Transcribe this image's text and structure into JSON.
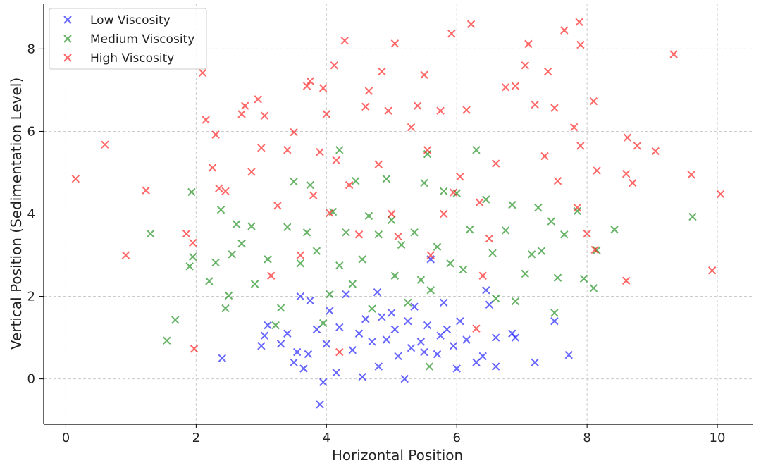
{
  "chart_data": {
    "type": "scatter",
    "title": "",
    "xlabel": "Horizontal Position",
    "ylabel": "Vertical Position (Sedimentation Level)",
    "xlim": [
      -0.34,
      10.54
    ],
    "ylim": [
      -1.1,
      9.1
    ],
    "xticks": [
      0,
      2,
      4,
      6,
      8,
      10
    ],
    "yticks": [
      0,
      2,
      4,
      6,
      8
    ],
    "grid": true,
    "legend_position": "top-left",
    "marker": "x",
    "series": [
      {
        "name": "Low Viscosity",
        "color": "#0000ff",
        "points": [
          [
            2.4,
            0.5
          ],
          [
            3.0,
            0.8
          ],
          [
            3.05,
            1.05
          ],
          [
            3.1,
            1.3
          ],
          [
            3.3,
            0.85
          ],
          [
            3.4,
            1.1
          ],
          [
            3.5,
            0.4
          ],
          [
            3.55,
            0.65
          ],
          [
            3.6,
            2.0
          ],
          [
            3.65,
            0.25
          ],
          [
            3.72,
            0.6
          ],
          [
            3.75,
            1.9
          ],
          [
            3.85,
            1.2
          ],
          [
            3.9,
            -0.62
          ],
          [
            3.95,
            -0.08
          ],
          [
            4.0,
            0.85
          ],
          [
            4.05,
            1.65
          ],
          [
            4.15,
            0.15
          ],
          [
            4.2,
            1.25
          ],
          [
            4.3,
            2.05
          ],
          [
            4.4,
            0.7
          ],
          [
            4.5,
            1.1
          ],
          [
            4.55,
            0.05
          ],
          [
            4.6,
            1.45
          ],
          [
            4.7,
            0.9
          ],
          [
            4.78,
            2.1
          ],
          [
            4.8,
            0.3
          ],
          [
            4.85,
            1.5
          ],
          [
            4.92,
            0.95
          ],
          [
            5.0,
            1.6
          ],
          [
            5.05,
            1.2
          ],
          [
            5.1,
            0.55
          ],
          [
            5.2,
            0.0
          ],
          [
            5.25,
            1.4
          ],
          [
            5.3,
            0.75
          ],
          [
            5.35,
            1.75
          ],
          [
            5.45,
            0.9
          ],
          [
            5.5,
            0.65
          ],
          [
            5.55,
            1.3
          ],
          [
            5.6,
            2.9
          ],
          [
            5.7,
            0.6
          ],
          [
            5.75,
            1.05
          ],
          [
            5.8,
            1.85
          ],
          [
            5.85,
            1.2
          ],
          [
            5.95,
            0.8
          ],
          [
            6.0,
            0.25
          ],
          [
            6.05,
            1.4
          ],
          [
            6.15,
            0.95
          ],
          [
            6.3,
            0.4
          ],
          [
            6.4,
            0.55
          ],
          [
            6.45,
            2.15
          ],
          [
            6.5,
            1.8
          ],
          [
            6.6,
            0.3
          ],
          [
            6.6,
            1.0
          ],
          [
            6.85,
            1.1
          ],
          [
            6.9,
            1.0
          ],
          [
            7.2,
            0.4
          ],
          [
            7.5,
            1.4
          ],
          [
            7.72,
            0.58
          ]
        ]
      },
      {
        "name": "Medium Viscosity",
        "color": "#008000",
        "points": [
          [
            1.3,
            3.52
          ],
          [
            1.55,
            0.93
          ],
          [
            1.68,
            1.43
          ],
          [
            1.9,
            2.73
          ],
          [
            1.93,
            4.53
          ],
          [
            1.95,
            2.96
          ],
          [
            2.2,
            2.37
          ],
          [
            2.3,
            2.82
          ],
          [
            2.38,
            4.1
          ],
          [
            2.45,
            1.71
          ],
          [
            2.5,
            2.02
          ],
          [
            2.55,
            3.02
          ],
          [
            2.62,
            3.75
          ],
          [
            2.7,
            3.28
          ],
          [
            2.85,
            3.7
          ],
          [
            2.9,
            2.3
          ],
          [
            3.1,
            2.9
          ],
          [
            3.22,
            1.3
          ],
          [
            3.3,
            1.72
          ],
          [
            3.4,
            3.68
          ],
          [
            3.5,
            4.78
          ],
          [
            3.6,
            2.8
          ],
          [
            3.7,
            3.55
          ],
          [
            3.75,
            4.7
          ],
          [
            3.85,
            3.1
          ],
          [
            3.95,
            1.35
          ],
          [
            4.05,
            2.05
          ],
          [
            4.1,
            4.05
          ],
          [
            4.2,
            2.75
          ],
          [
            4.2,
            5.55
          ],
          [
            4.3,
            3.55
          ],
          [
            4.4,
            2.3
          ],
          [
            4.45,
            4.8
          ],
          [
            4.55,
            2.9
          ],
          [
            4.65,
            3.95
          ],
          [
            4.7,
            1.7
          ],
          [
            4.8,
            3.5
          ],
          [
            4.92,
            4.85
          ],
          [
            5.0,
            3.85
          ],
          [
            5.05,
            2.5
          ],
          [
            5.15,
            3.25
          ],
          [
            5.25,
            1.85
          ],
          [
            5.35,
            3.55
          ],
          [
            5.45,
            2.4
          ],
          [
            5.5,
            4.75
          ],
          [
            5.55,
            5.45
          ],
          [
            5.6,
            2.15
          ],
          [
            5.58,
            0.3
          ],
          [
            5.7,
            3.2
          ],
          [
            5.8,
            4.55
          ],
          [
            5.9,
            2.8
          ],
          [
            6.0,
            4.5
          ],
          [
            6.1,
            2.65
          ],
          [
            6.2,
            3.62
          ],
          [
            6.3,
            5.55
          ],
          [
            6.45,
            4.35
          ],
          [
            6.55,
            3.05
          ],
          [
            6.6,
            1.95
          ],
          [
            6.75,
            3.6
          ],
          [
            6.85,
            4.22
          ],
          [
            6.9,
            1.88
          ],
          [
            7.05,
            2.55
          ],
          [
            7.15,
            3.02
          ],
          [
            7.25,
            4.15
          ],
          [
            7.3,
            3.1
          ],
          [
            7.45,
            3.82
          ],
          [
            7.5,
            1.6
          ],
          [
            7.55,
            2.45
          ],
          [
            7.65,
            3.5
          ],
          [
            7.85,
            4.07
          ],
          [
            7.95,
            2.43
          ],
          [
            8.1,
            2.2
          ],
          [
            8.15,
            3.12
          ],
          [
            8.42,
            3.62
          ],
          [
            9.62,
            3.93
          ]
        ]
      },
      {
        "name": "High Viscosity",
        "color": "#ff0000",
        "points": [
          [
            0.15,
            4.85
          ],
          [
            0.6,
            5.68
          ],
          [
            0.92,
            3.0
          ],
          [
            1.23,
            4.57
          ],
          [
            1.85,
            3.52
          ],
          [
            1.95,
            3.3
          ],
          [
            1.97,
            0.73
          ],
          [
            2.1,
            7.42
          ],
          [
            2.15,
            6.28
          ],
          [
            2.25,
            5.12
          ],
          [
            2.3,
            5.92
          ],
          [
            2.35,
            4.62
          ],
          [
            2.45,
            4.55
          ],
          [
            2.7,
            6.42
          ],
          [
            2.75,
            6.62
          ],
          [
            2.85,
            5.02
          ],
          [
            2.95,
            6.78
          ],
          [
            3.0,
            5.6
          ],
          [
            3.05,
            6.38
          ],
          [
            3.15,
            2.5
          ],
          [
            3.25,
            4.2
          ],
          [
            3.4,
            5.55
          ],
          [
            3.5,
            5.98
          ],
          [
            3.6,
            3.0
          ],
          [
            3.7,
            7.1
          ],
          [
            3.75,
            7.22
          ],
          [
            3.8,
            4.45
          ],
          [
            3.9,
            5.5
          ],
          [
            3.95,
            7.05
          ],
          [
            4.0,
            6.42
          ],
          [
            4.05,
            4.02
          ],
          [
            4.12,
            7.6
          ],
          [
            4.15,
            5.3
          ],
          [
            4.2,
            0.65
          ],
          [
            4.28,
            8.2
          ],
          [
            4.35,
            4.7
          ],
          [
            4.5,
            3.5
          ],
          [
            4.6,
            6.6
          ],
          [
            4.65,
            6.98
          ],
          [
            4.8,
            5.2
          ],
          [
            4.85,
            7.45
          ],
          [
            4.95,
            6.5
          ],
          [
            5.0,
            4.0
          ],
          [
            5.05,
            8.13
          ],
          [
            5.1,
            3.45
          ],
          [
            5.3,
            6.1
          ],
          [
            5.4,
            6.62
          ],
          [
            5.5,
            7.37
          ],
          [
            5.55,
            5.55
          ],
          [
            5.6,
            3.0
          ],
          [
            5.75,
            6.5
          ],
          [
            5.8,
            4.0
          ],
          [
            5.92,
            8.37
          ],
          [
            5.95,
            4.52
          ],
          [
            6.05,
            4.9
          ],
          [
            6.15,
            6.52
          ],
          [
            6.22,
            8.6
          ],
          [
            6.3,
            1.22
          ],
          [
            6.35,
            4.28
          ],
          [
            6.4,
            2.5
          ],
          [
            6.5,
            3.4
          ],
          [
            6.6,
            5.22
          ],
          [
            6.75,
            7.07
          ],
          [
            6.9,
            7.1
          ],
          [
            7.1,
            8.12
          ],
          [
            7.05,
            7.6
          ],
          [
            7.2,
            6.65
          ],
          [
            7.35,
            5.4
          ],
          [
            7.4,
            7.45
          ],
          [
            7.5,
            6.57
          ],
          [
            7.55,
            4.8
          ],
          [
            7.65,
            8.45
          ],
          [
            7.8,
            6.1
          ],
          [
            7.85,
            4.15
          ],
          [
            7.88,
            8.65
          ],
          [
            7.9,
            8.1
          ],
          [
            7.9,
            5.65
          ],
          [
            8.0,
            3.52
          ],
          [
            8.1,
            6.73
          ],
          [
            8.12,
            3.13
          ],
          [
            8.15,
            5.05
          ],
          [
            8.6,
            4.97
          ],
          [
            8.6,
            2.38
          ],
          [
            8.62,
            5.85
          ],
          [
            8.7,
            4.75
          ],
          [
            8.77,
            5.65
          ],
          [
            9.05,
            5.52
          ],
          [
            9.33,
            7.87
          ],
          [
            9.6,
            4.95
          ],
          [
            9.92,
            2.63
          ],
          [
            10.05,
            4.48
          ]
        ]
      }
    ]
  }
}
